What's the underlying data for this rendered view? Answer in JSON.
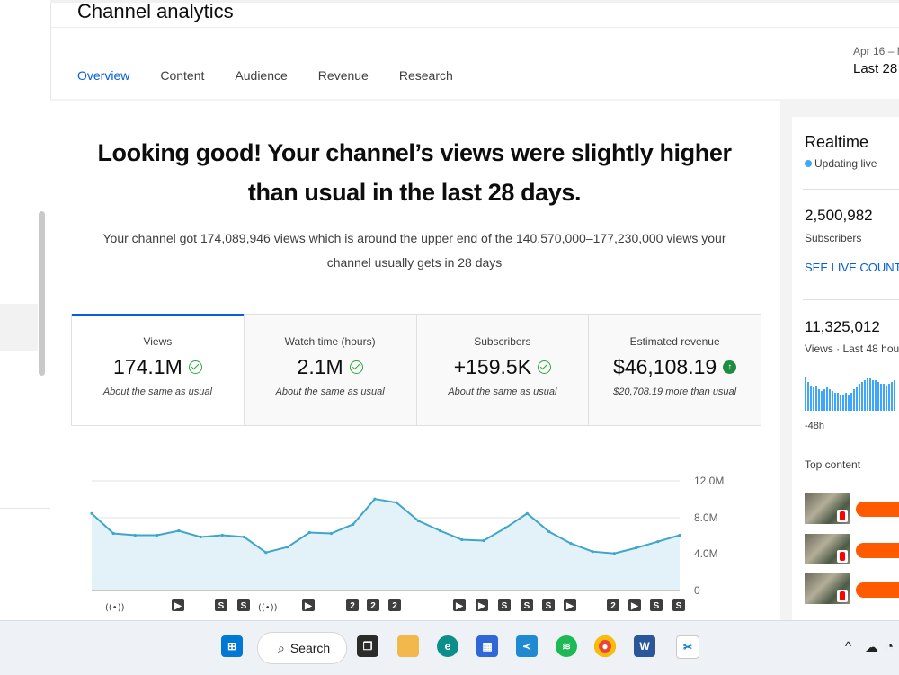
{
  "page": {
    "title": "Channel analytics"
  },
  "tabs": [
    {
      "label": "Overview"
    },
    {
      "label": "Content"
    },
    {
      "label": "Audience"
    },
    {
      "label": "Revenue"
    },
    {
      "label": "Research"
    }
  ],
  "date_range": {
    "range": "Apr 16 – M",
    "period": "Last 28 d"
  },
  "summary": {
    "headline": "Looking good! Your channel’s views were slightly higher than usual in the last 28 days.",
    "detail": "Your channel got 174,089,946 views which is around the upper end of the 140,570,000–177,230,000 views your channel usually gets in 28 days"
  },
  "metrics": [
    {
      "label": "Views",
      "value": "174.1M",
      "note": "About the same as usual",
      "icon": "check-circle-icon"
    },
    {
      "label": "Watch time (hours)",
      "value": "2.1M",
      "note": "About the same as usual",
      "icon": "check-circle-icon"
    },
    {
      "label": "Subscribers",
      "value": "+159.5K",
      "note": "About the same as usual",
      "icon": "check-circle-icon"
    },
    {
      "label": "Estimated revenue",
      "value": "$46,108.19",
      "note": "$20,708.19 more than usual",
      "icon": "up-arrow-circle-icon"
    }
  ],
  "chart_data": {
    "type": "area",
    "y_ticks": [
      "12.0M",
      "8.0M",
      "4.0M",
      "0"
    ],
    "ylim": [
      0,
      12000000
    ],
    "values": [
      8.4,
      6.2,
      6.0,
      6.0,
      6.5,
      5.8,
      6.0,
      5.8,
      4.1,
      4.7,
      6.3,
      6.2,
      7.2,
      10.0,
      9.6,
      7.6,
      6.5,
      5.5,
      5.4,
      6.8,
      8.4,
      6.4,
      5.1,
      4.2,
      4.0,
      4.6,
      5.3,
      6.0
    ],
    "colors": {
      "line": "#3ea6c9",
      "fill": "#e3f1f8"
    },
    "markers": [
      "live-icon",
      "play-icon",
      "short-icon",
      "short-icon",
      "live-icon",
      "play-icon",
      "number-2-icon",
      "number-2-icon",
      "number-2-icon",
      "play-icon",
      "play-icon",
      "short-icon",
      "short-icon",
      "short-icon",
      "play-icon",
      "number-2-icon",
      "play-icon",
      "short-icon",
      "short-icon"
    ]
  },
  "realtime": {
    "title": "Realtime",
    "status": "Updating live",
    "subscribers": "2,500,982",
    "subscribers_label": "Subscribers",
    "see_live_count": "SEE LIVE COUNT",
    "views": "11,325,012",
    "views_label": "Views · Last 48 hour",
    "axis_label": "-48h",
    "bars": [
      0.95,
      0.8,
      0.7,
      0.65,
      0.7,
      0.6,
      0.55,
      0.6,
      0.65,
      0.6,
      0.55,
      0.5,
      0.5,
      0.45,
      0.45,
      0.5,
      0.45,
      0.5,
      0.6,
      0.65,
      0.75,
      0.8,
      0.85,
      0.9,
      0.9,
      0.85,
      0.85,
      0.8,
      0.75,
      0.75,
      0.7,
      0.75,
      0.8,
      0.85
    ],
    "top_content_label": "Top content",
    "top_content": [
      {
        "thumb": "video-thumbnail"
      },
      {
        "thumb": "video-thumbnail"
      },
      {
        "thumb": "video-thumbnail"
      }
    ]
  },
  "taskbar": {
    "search_label": "Search",
    "apps": [
      "windows-start-icon",
      "task-view-icon",
      "file-explorer-icon",
      "edge-icon",
      "microsoft-store-icon",
      "vscode-icon",
      "spotify-icon",
      "chrome-icon",
      "word-icon",
      "snipping-tool-icon"
    ]
  }
}
